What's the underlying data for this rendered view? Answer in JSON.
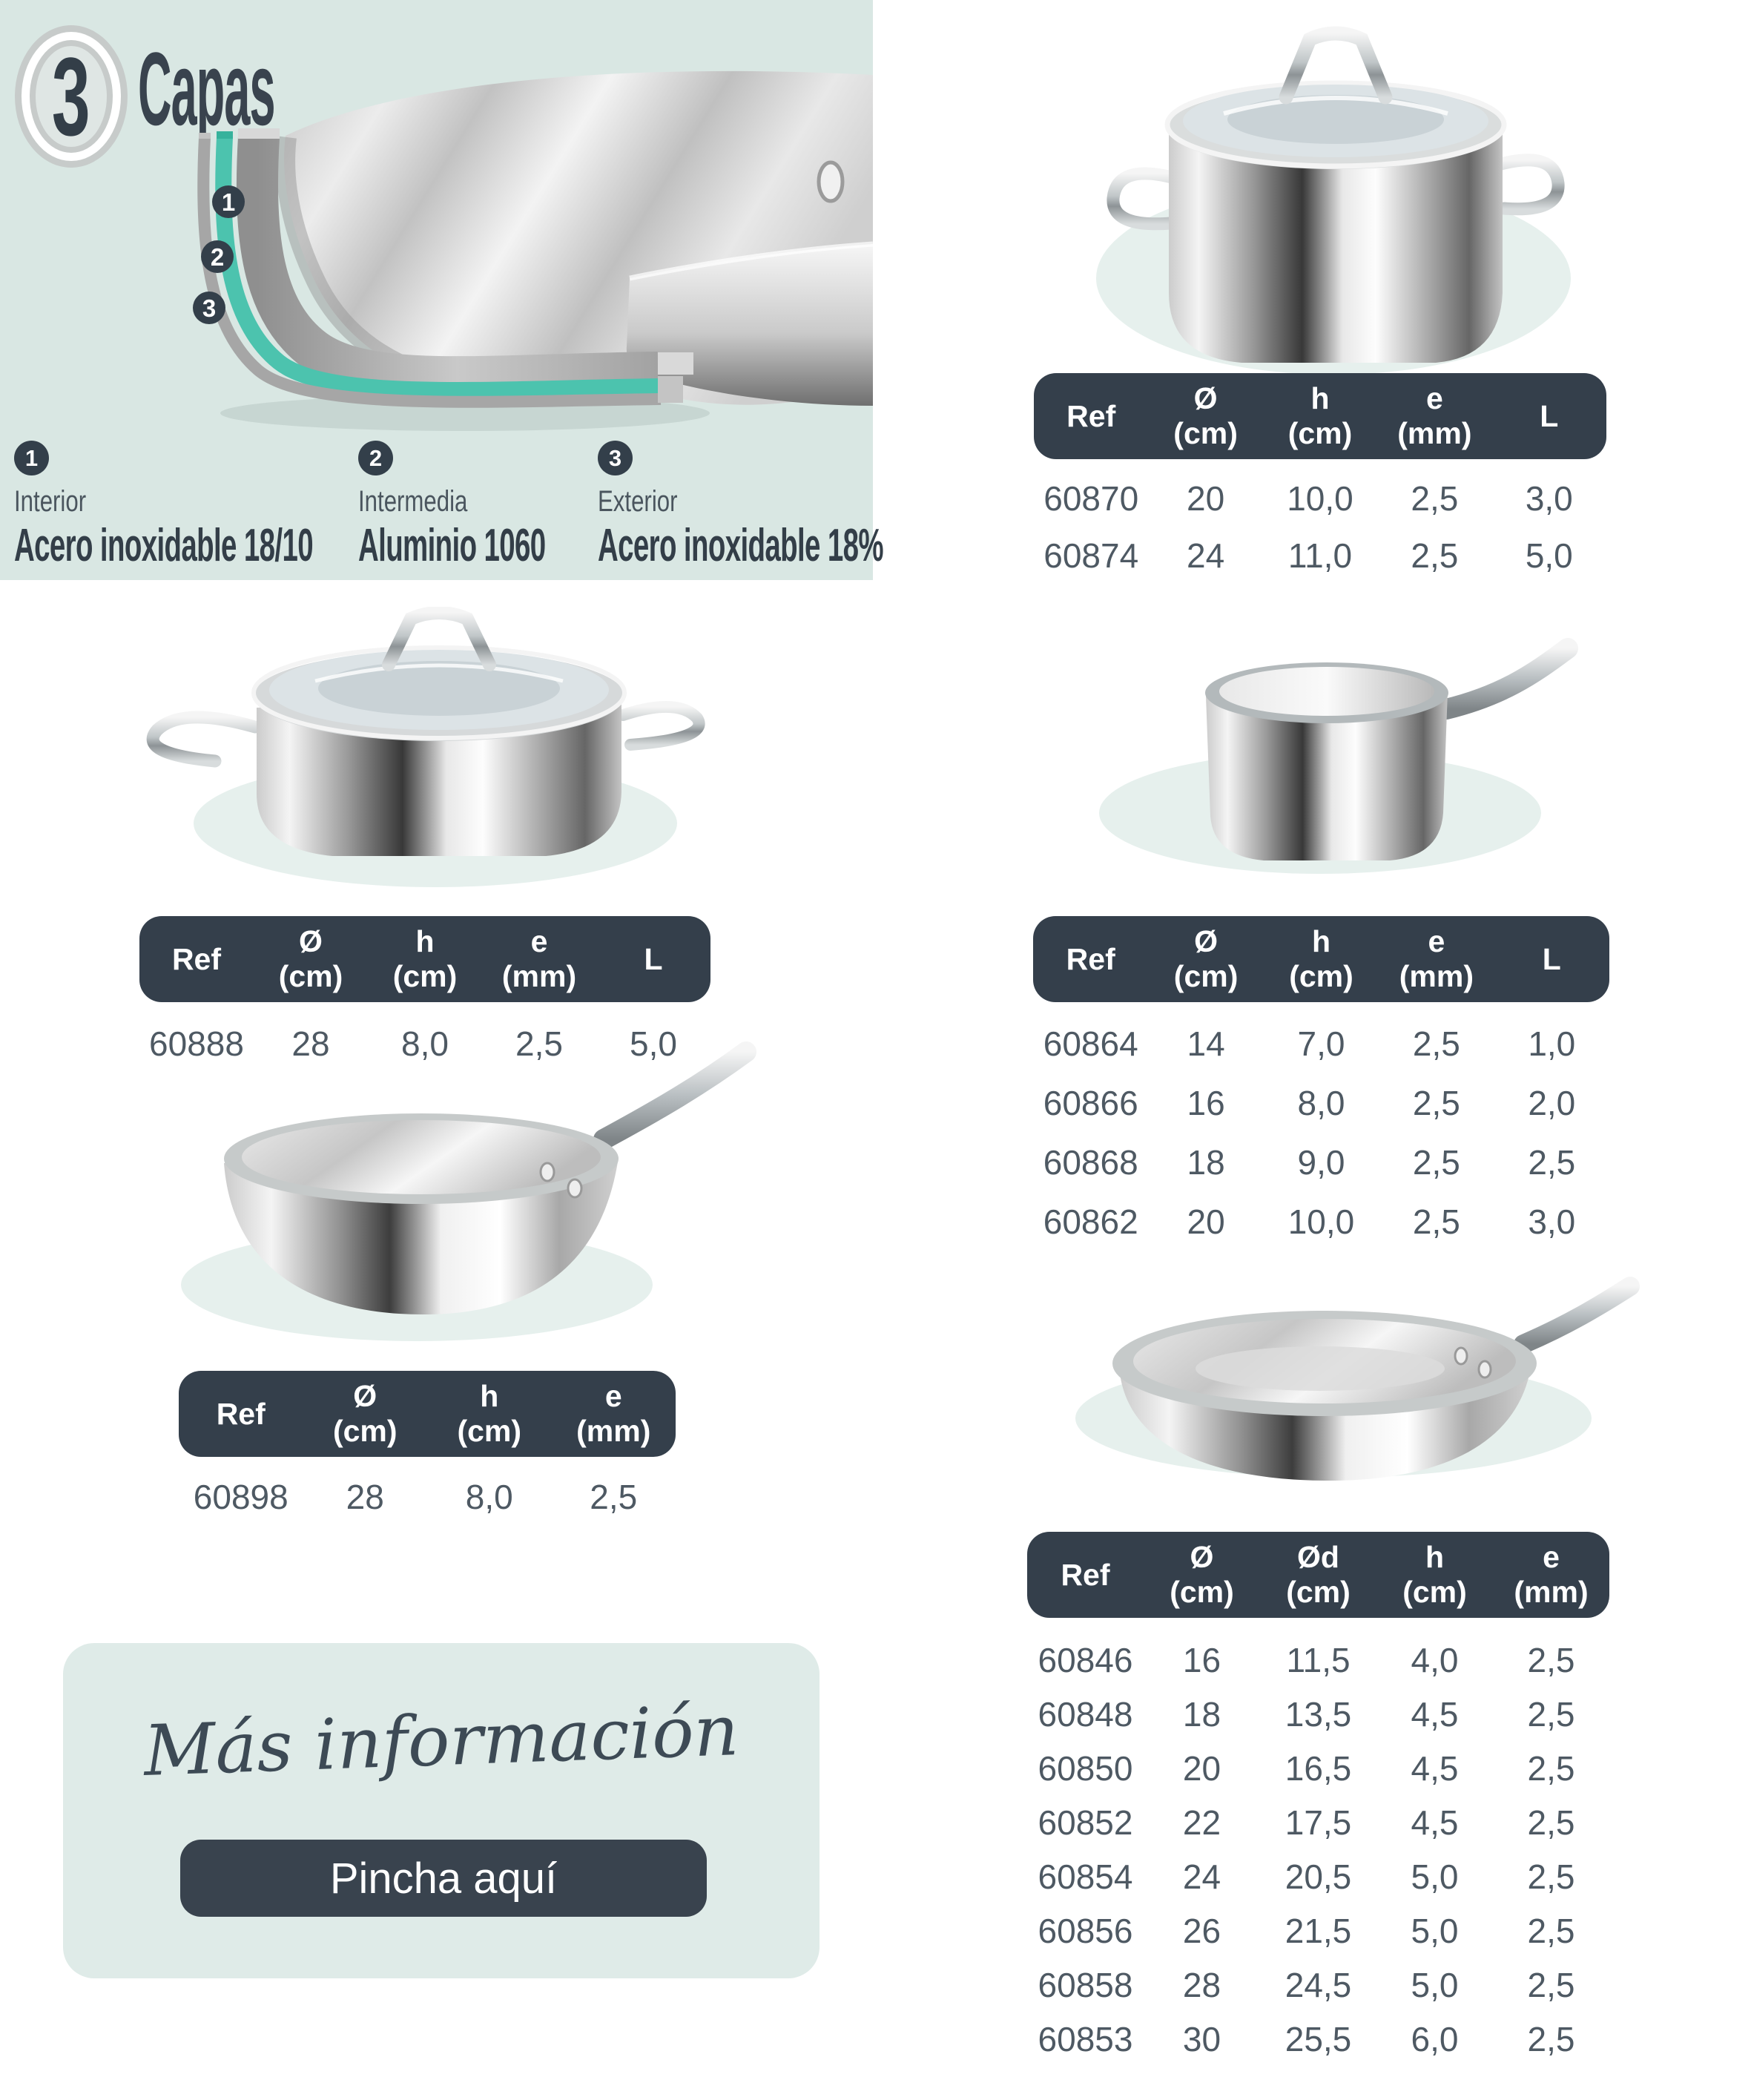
{
  "hero": {
    "badge_number": "3",
    "title": "Capas",
    "layers": [
      {
        "num": "1",
        "position": "Interior",
        "material": "Acero inoxidable 18/10"
      },
      {
        "num": "2",
        "position": "Intermedia",
        "material": "Aluminio 1060"
      },
      {
        "num": "3",
        "position": "Exterior",
        "material": "Acero inoxidable 18%"
      }
    ]
  },
  "tables": {
    "stockpot": {
      "columns": [
        {
          "label": "Ref",
          "unit": ""
        },
        {
          "label": "Ø",
          "unit": "(cm)"
        },
        {
          "label": "h",
          "unit": "(cm)"
        },
        {
          "label": "e",
          "unit": "(mm)"
        },
        {
          "label": "L",
          "unit": ""
        }
      ],
      "rows": [
        [
          "60870",
          "20",
          "10,0",
          "2,5",
          "3,0"
        ],
        [
          "60874",
          "24",
          "11,0",
          "2,5",
          "5,0"
        ]
      ]
    },
    "casserole": {
      "columns": [
        {
          "label": "Ref",
          "unit": ""
        },
        {
          "label": "Ø",
          "unit": "(cm)"
        },
        {
          "label": "h",
          "unit": "(cm)"
        },
        {
          "label": "e",
          "unit": "(mm)"
        },
        {
          "label": "L",
          "unit": ""
        }
      ],
      "rows": [
        [
          "60888",
          "28",
          "8,0",
          "2,5",
          "5,0"
        ]
      ]
    },
    "saucepan": {
      "columns": [
        {
          "label": "Ref",
          "unit": ""
        },
        {
          "label": "Ø",
          "unit": "(cm)"
        },
        {
          "label": "h",
          "unit": "(cm)"
        },
        {
          "label": "e",
          "unit": "(mm)"
        },
        {
          "label": "L",
          "unit": ""
        }
      ],
      "rows": [
        [
          "60864",
          "14",
          "7,0",
          "2,5",
          "1,0"
        ],
        [
          "60866",
          "16",
          "8,0",
          "2,5",
          "2,0"
        ],
        [
          "60868",
          "18",
          "9,0",
          "2,5",
          "2,5"
        ],
        [
          "60862",
          "20",
          "10,0",
          "2,5",
          "3,0"
        ]
      ]
    },
    "wok": {
      "columns": [
        {
          "label": "Ref",
          "unit": ""
        },
        {
          "label": "Ø",
          "unit": "(cm)"
        },
        {
          "label": "h",
          "unit": "(cm)"
        },
        {
          "label": "e",
          "unit": "(mm)"
        }
      ],
      "rows": [
        [
          "60898",
          "28",
          "8,0",
          "2,5"
        ]
      ]
    },
    "frypan": {
      "columns": [
        {
          "label": "Ref",
          "unit": ""
        },
        {
          "label": "Ø",
          "unit": "(cm)"
        },
        {
          "label": "Ød",
          "unit": "(cm)"
        },
        {
          "label": "h",
          "unit": "(cm)"
        },
        {
          "label": "e",
          "unit": "(mm)"
        }
      ],
      "rows": [
        [
          "60846",
          "16",
          "11,5",
          "4,0",
          "2,5"
        ],
        [
          "60848",
          "18",
          "13,5",
          "4,5",
          "2,5"
        ],
        [
          "60850",
          "20",
          "16,5",
          "4,5",
          "2,5"
        ],
        [
          "60852",
          "22",
          "17,5",
          "4,5",
          "2,5"
        ],
        [
          "60854",
          "24",
          "20,5",
          "5,0",
          "2,5"
        ],
        [
          "60856",
          "26",
          "21,5",
          "5,0",
          "2,5"
        ],
        [
          "60858",
          "28",
          "24,5",
          "5,0",
          "2,5"
        ],
        [
          "60853",
          "30",
          "25,5",
          "6,0",
          "2,5"
        ]
      ]
    }
  },
  "more_info": {
    "heading": "Más información",
    "button_label": "Pincha aquí"
  },
  "colors": {
    "mint_panel": "#d9e7e3",
    "mint_card": "#dfebe8",
    "mint_ellipse": "#e6f0ed",
    "header_bg": "#343f4b",
    "teal_layer": "#4cc3ae",
    "title_text": "#333e48",
    "row_text": "#4e5963"
  }
}
